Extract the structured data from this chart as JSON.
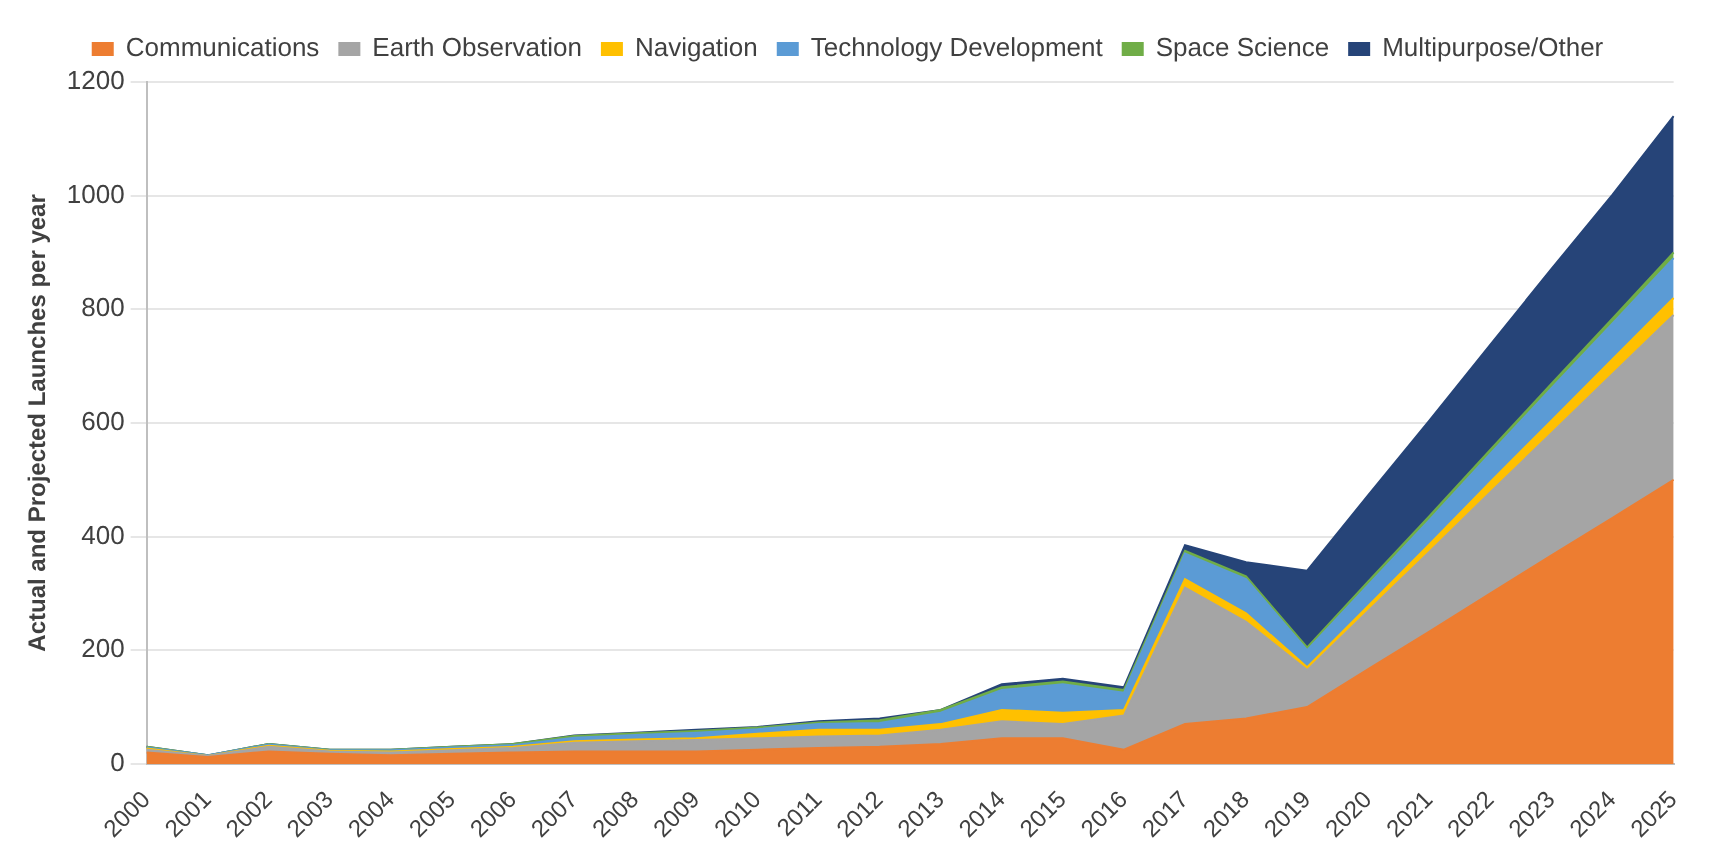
{
  "chart_data": {
    "type": "area",
    "stacked": true,
    "ylabel": "Actual and Projected Launches per year",
    "categories": [
      "2000",
      "2001",
      "2002",
      "2003",
      "2004",
      "2005",
      "2006",
      "2007",
      "2008",
      "2009",
      "2010",
      "2011",
      "2012",
      "2013",
      "2014",
      "2015",
      "2016",
      "2017",
      "2018",
      "2019",
      "2020",
      "2021",
      "2022",
      "2023",
      "2024",
      "2025"
    ],
    "series": [
      {
        "name": "Communications",
        "color": "#ed7d31",
        "values": [
          20,
          12,
          22,
          18,
          15,
          18,
          20,
          22,
          22,
          22,
          25,
          28,
          30,
          35,
          45,
          45,
          25,
          70,
          80,
          100,
          167,
          233,
          300,
          367,
          433,
          500
        ]
      },
      {
        "name": "Earth Observation",
        "color": "#a5a5a5",
        "values": [
          5,
          2,
          8,
          4,
          5,
          6,
          8,
          15,
          18,
          20,
          20,
          20,
          20,
          25,
          30,
          25,
          60,
          240,
          170,
          65,
          102,
          140,
          178,
          215,
          253,
          290
        ]
      },
      {
        "name": "Navigation",
        "color": "#ffc000",
        "values": [
          2,
          0,
          2,
          1,
          2,
          2,
          2,
          3,
          3,
          3,
          8,
          12,
          10,
          10,
          20,
          20,
          10,
          15,
          15,
          5,
          9,
          13,
          18,
          22,
          26,
          30
        ]
      },
      {
        "name": "Technology Development",
        "color": "#5b9bd5",
        "values": [
          2,
          1,
          2,
          1,
          2,
          3,
          3,
          6,
          8,
          10,
          8,
          10,
          12,
          20,
          35,
          50,
          30,
          45,
          60,
          30,
          37,
          43,
          50,
          57,
          63,
          70
        ]
      },
      {
        "name": "Space Science",
        "color": "#70ad47",
        "values": [
          1,
          0,
          1,
          1,
          1,
          1,
          2,
          3,
          3,
          3,
          3,
          3,
          5,
          5,
          5,
          5,
          5,
          5,
          5,
          5,
          6,
          7,
          7,
          8,
          9,
          10
        ]
      },
      {
        "name": "Multipurpose/Other",
        "color": "#264478",
        "values": [
          0,
          0,
          0,
          0,
          0,
          0,
          0,
          1,
          1,
          2,
          1,
          2,
          3,
          0,
          5,
          5,
          5,
          10,
          25,
          135,
          152,
          168,
          185,
          202,
          218,
          240
        ]
      }
    ],
    "ylim": [
      0,
      1200
    ],
    "yticks": [
      0,
      200,
      400,
      600,
      800,
      1000,
      1200
    ],
    "grid": "y",
    "legend": "top"
  }
}
